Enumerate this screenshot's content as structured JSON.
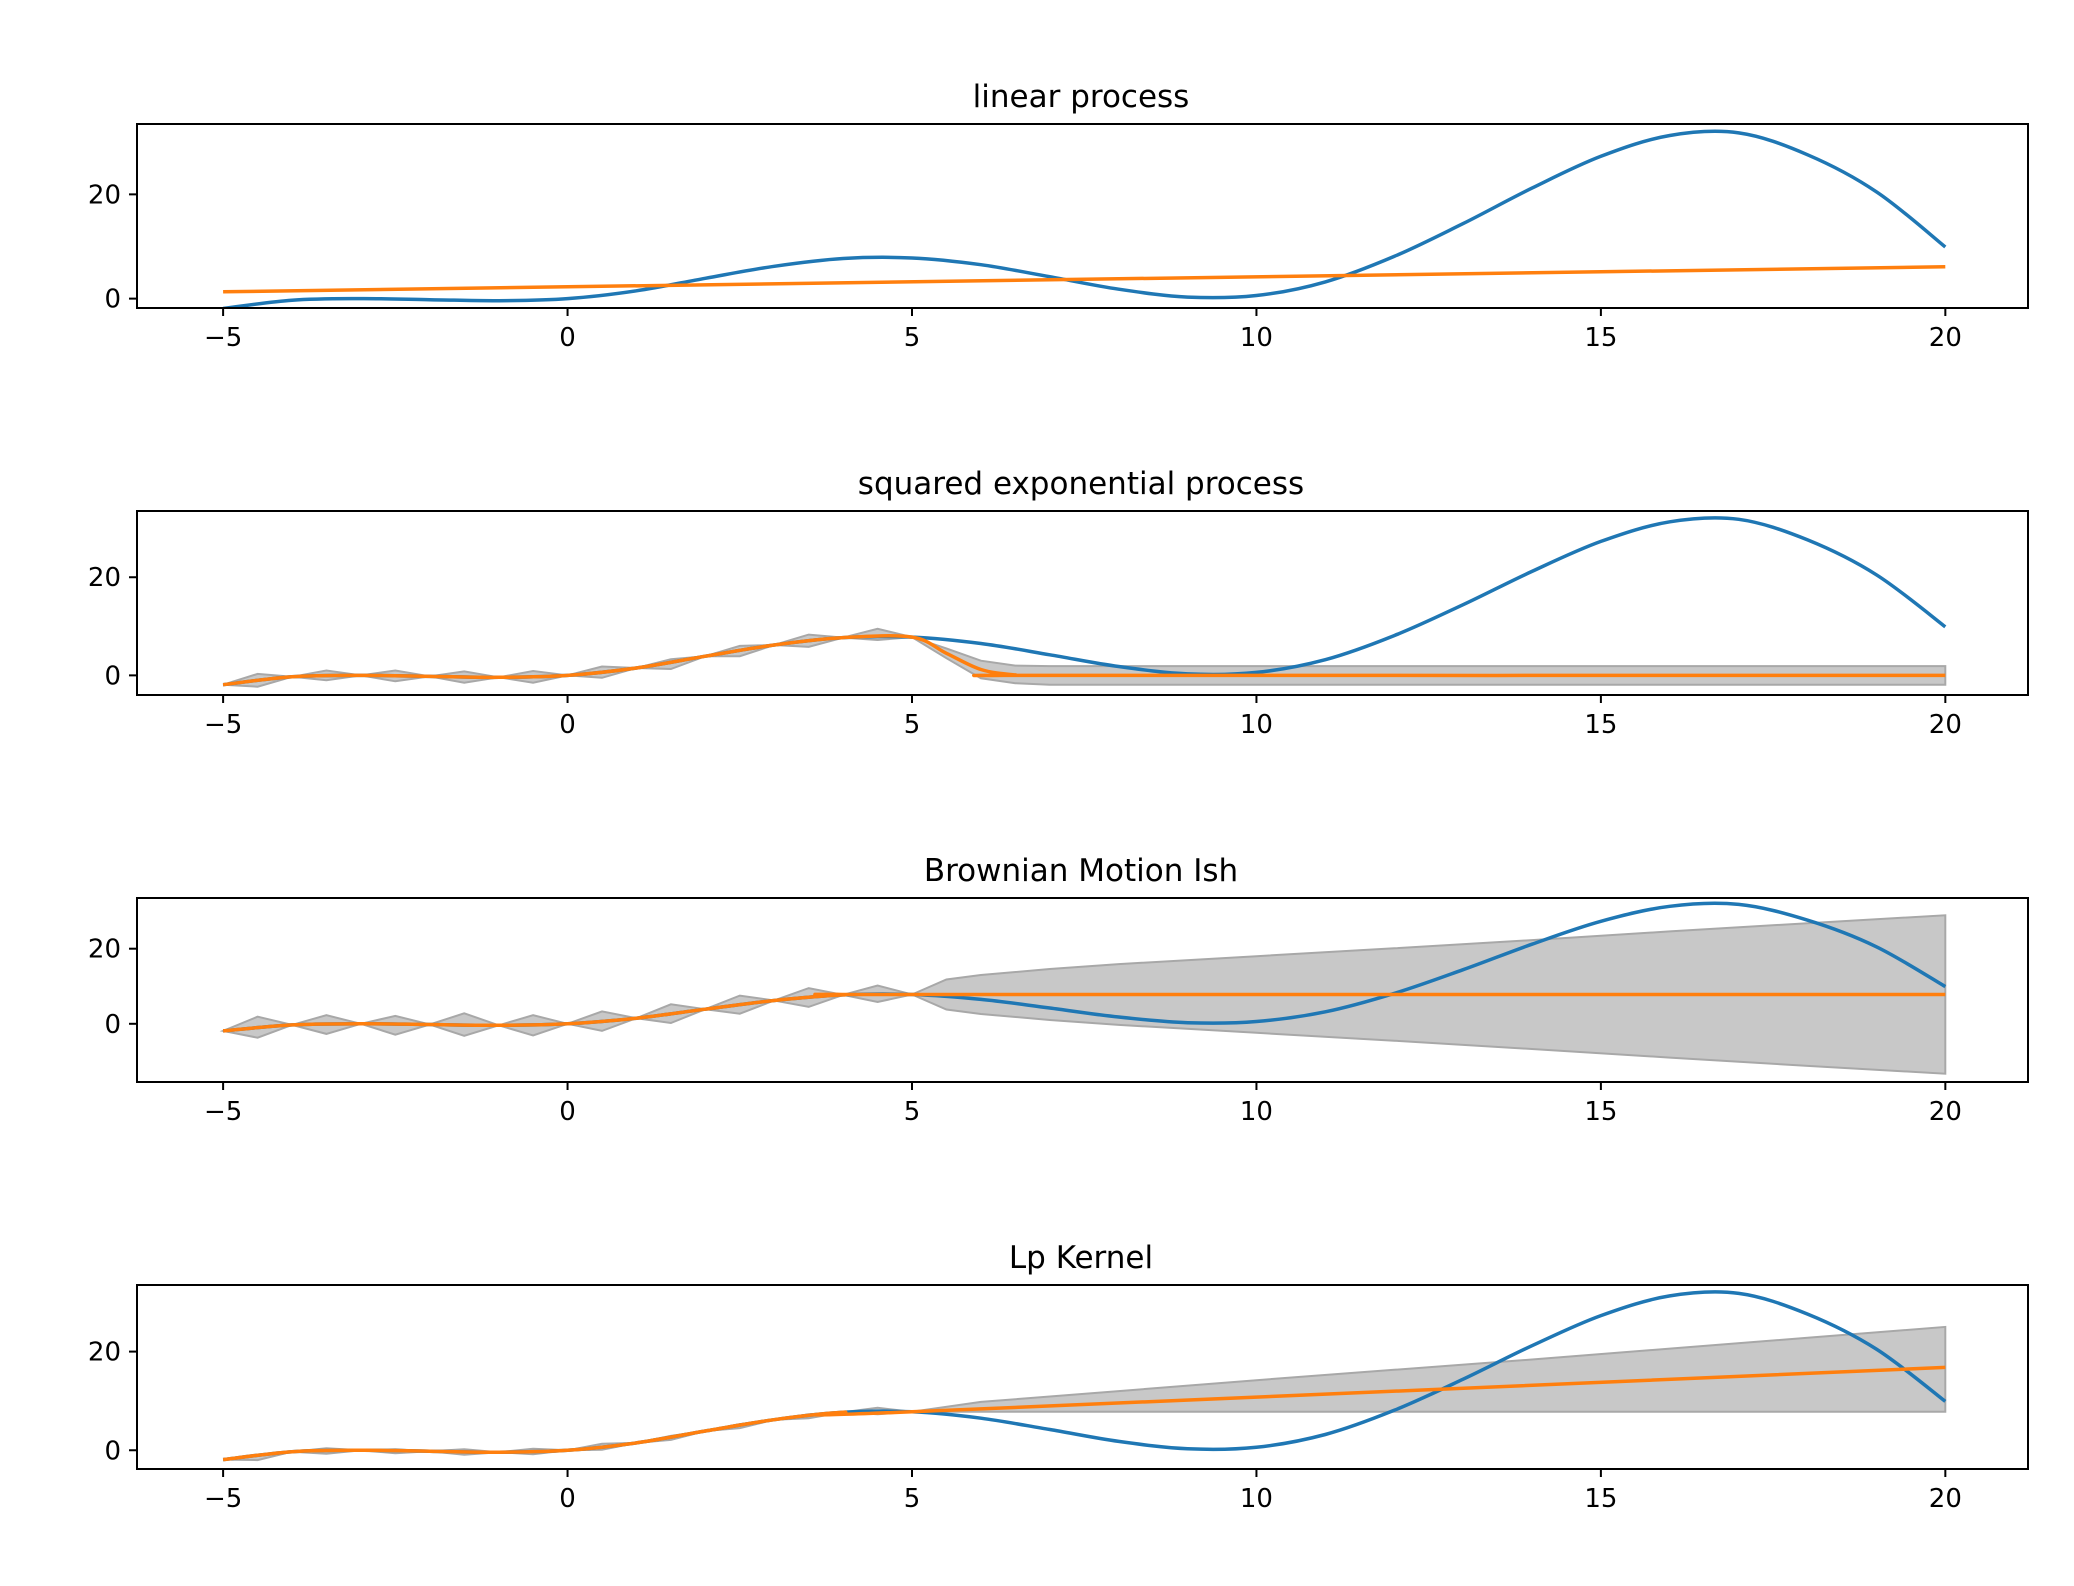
{
  "colors": {
    "truth_line": "#1f77b4",
    "mean_line": "#ff7f0e",
    "band_fill": "#c8c8c8",
    "band_edge": "#a8a8a8",
    "axes": "#000000"
  },
  "chart_data": [
    {
      "type": "line",
      "title": "linear process",
      "xlim": [
        -6.25,
        21.2
      ],
      "ylim": [
        -1.8,
        33.5
      ],
      "xticks": [
        -5,
        0,
        5,
        10,
        15,
        20
      ],
      "xtick_labels": [
        "−5",
        "0",
        "5",
        "10",
        "15",
        "20"
      ],
      "yticks": [
        0,
        20
      ],
      "ytick_labels": [
        "0",
        "20"
      ],
      "truth_x": [
        -5,
        -4,
        -3,
        -2,
        -1,
        0,
        1,
        2,
        3,
        4,
        5,
        6,
        7,
        8,
        9,
        10,
        11,
        12,
        13,
        14,
        15,
        16,
        17,
        18,
        19,
        20
      ],
      "truth_y": [
        -1.9,
        -0.3,
        0.0,
        -0.2,
        -0.4,
        0.0,
        1.5,
        3.9,
        6.2,
        7.7,
        7.8,
        6.5,
        4.2,
        1.8,
        0.3,
        0.6,
        3.2,
        8.1,
        14.4,
        21.2,
        27.3,
        31.3,
        31.8,
        27.6,
        20.5,
        9.9
      ],
      "mean_x": [
        -5,
        20
      ],
      "mean_y": [
        1.3,
        6.1
      ],
      "band_x": [],
      "band_lower": [],
      "band_upper": []
    },
    {
      "type": "line",
      "title": "squared exponential process",
      "xlim": [
        -6.25,
        21.2
      ],
      "ylim": [
        -4.0,
        33.5
      ],
      "xticks": [
        -5,
        0,
        5,
        10,
        15,
        20
      ],
      "xtick_labels": [
        "−5",
        "0",
        "5",
        "10",
        "15",
        "20"
      ],
      "yticks": [
        0,
        20
      ],
      "ytick_labels": [
        "0",
        "20"
      ],
      "truth_x": [
        -5,
        -4,
        -3,
        -2,
        -1,
        0,
        1,
        2,
        3,
        4,
        5,
        6,
        7,
        8,
        9,
        10,
        11,
        12,
        13,
        14,
        15,
        16,
        17,
        18,
        19,
        20
      ],
      "truth_y": [
        -1.9,
        -0.3,
        0.0,
        -0.2,
        -0.4,
        0.0,
        1.5,
        3.9,
        6.2,
        7.7,
        7.8,
        6.5,
        4.2,
        1.8,
        0.3,
        0.6,
        3.2,
        8.1,
        14.4,
        21.2,
        27.3,
        31.3,
        31.8,
        27.6,
        20.5,
        9.9
      ],
      "mean_x": [
        -5,
        -4,
        -3,
        -2,
        -1,
        0,
        1,
        2,
        3,
        4,
        5,
        5.5,
        6,
        6.5,
        7,
        20
      ],
      "mean_y": [
        -1.9,
        -0.3,
        0.0,
        -0.2,
        -0.4,
        0.0,
        1.5,
        3.9,
        6.2,
        7.7,
        7.8,
        4.5,
        1.2,
        0.1,
        0.0,
        0.0
      ],
      "band_x": [
        -5,
        -4.5,
        -4,
        -3.5,
        -3,
        -2.5,
        -2,
        -1.5,
        -1,
        -0.5,
        0,
        0.5,
        1,
        1.5,
        2,
        2.5,
        3,
        3.5,
        4,
        4.5,
        5,
        5.5,
        6,
        6.5,
        7,
        20
      ],
      "band_lower": [
        -1.9,
        -2.3,
        -0.3,
        -1.0,
        0.0,
        -1.2,
        -0.2,
        -1.5,
        -0.4,
        -1.5,
        0.0,
        -0.5,
        1.5,
        1.3,
        3.9,
        3.9,
        6.2,
        5.8,
        7.7,
        7.2,
        7.8,
        3.5,
        -0.6,
        -1.6,
        -1.9,
        -1.9
      ],
      "band_upper": [
        -1.9,
        0.3,
        -0.3,
        1.0,
        0.0,
        1.0,
        -0.2,
        0.8,
        -0.4,
        0.9,
        0.0,
        1.8,
        1.5,
        3.3,
        3.9,
        6.0,
        6.2,
        8.3,
        7.7,
        9.5,
        7.8,
        5.5,
        3.0,
        2.0,
        1.9,
        1.9
      ]
    },
    {
      "type": "line",
      "title": "Brownian Motion Ish",
      "xlim": [
        -6.25,
        21.2
      ],
      "ylim": [
        -15.5,
        33.5
      ],
      "xticks": [
        -5,
        0,
        5,
        10,
        15,
        20
      ],
      "xtick_labels": [
        "−5",
        "0",
        "5",
        "10",
        "15",
        "20"
      ],
      "yticks": [
        0,
        20
      ],
      "ytick_labels": [
        "0",
        "20"
      ],
      "truth_x": [
        -5,
        -4,
        -3,
        -2,
        -1,
        0,
        1,
        2,
        3,
        4,
        5,
        6,
        7,
        8,
        9,
        10,
        11,
        12,
        13,
        14,
        15,
        16,
        17,
        18,
        19,
        20
      ],
      "truth_y": [
        -1.9,
        -0.3,
        0.0,
        -0.2,
        -0.4,
        0.0,
        1.5,
        3.9,
        6.2,
        7.7,
        7.8,
        6.5,
        4.2,
        1.8,
        0.3,
        0.6,
        3.2,
        8.1,
        14.4,
        21.2,
        27.3,
        31.3,
        31.8,
        27.6,
        20.5,
        9.9
      ],
      "mean_x": [
        -5,
        -4,
        -3,
        -2,
        -1,
        0,
        1,
        2,
        3,
        4,
        5,
        20
      ],
      "mean_y": [
        -1.9,
        -0.3,
        0.0,
        -0.2,
        -0.4,
        0.0,
        1.5,
        3.9,
        6.2,
        7.7,
        7.8,
        7.8
      ],
      "band_x": [
        -5,
        -4.5,
        -4,
        -3.5,
        -3,
        -2.5,
        -2,
        -1.5,
        -1,
        -0.5,
        0,
        0.5,
        1,
        1.5,
        2,
        2.5,
        3,
        3.5,
        4,
        4.5,
        5,
        5.5,
        6,
        7,
        8,
        10,
        12,
        14,
        16,
        18,
        20
      ],
      "band_lower": [
        -1.9,
        -3.7,
        -0.3,
        -2.7,
        0.0,
        -2.9,
        -0.2,
        -3.2,
        -0.4,
        -3.1,
        0.0,
        -1.9,
        1.5,
        0.2,
        3.9,
        2.7,
        6.2,
        4.5,
        7.7,
        5.8,
        7.8,
        3.8,
        2.6,
        1.0,
        -0.3,
        -2.4,
        -4.5,
        -6.7,
        -9.0,
        -11.2,
        -13.3
      ],
      "band_upper": [
        -1.9,
        1.9,
        -0.3,
        2.3,
        0.0,
        2.1,
        -0.2,
        2.8,
        -0.4,
        2.3,
        0.0,
        3.3,
        1.5,
        5.2,
        3.9,
        7.5,
        6.2,
        9.5,
        7.7,
        10.2,
        7.8,
        11.8,
        13.0,
        14.6,
        15.9,
        18.0,
        20.1,
        22.3,
        24.6,
        26.8,
        28.9
      ]
    },
    {
      "type": "line",
      "title": "Lp Kernel",
      "xlim": [
        -6.25,
        21.2
      ],
      "ylim": [
        -3.8,
        33.5
      ],
      "xticks": [
        -5,
        0,
        5,
        10,
        15,
        20
      ],
      "xtick_labels": [
        "−5",
        "0",
        "5",
        "10",
        "15",
        "20"
      ],
      "yticks": [
        0,
        20
      ],
      "ytick_labels": [
        "0",
        "20"
      ],
      "truth_x": [
        -5,
        -4,
        -3,
        -2,
        -1,
        0,
        1,
        2,
        3,
        4,
        5,
        6,
        7,
        8,
        9,
        10,
        11,
        12,
        13,
        14,
        15,
        16,
        17,
        18,
        19,
        20
      ],
      "truth_y": [
        -1.9,
        -0.3,
        0.0,
        -0.2,
        -0.4,
        0.0,
        1.5,
        3.9,
        6.2,
        7.7,
        7.8,
        6.5,
        4.2,
        1.8,
        0.3,
        0.6,
        3.2,
        8.1,
        14.4,
        21.2,
        27.3,
        31.3,
        31.8,
        27.6,
        20.5,
        9.9
      ],
      "mean_x": [
        -5,
        -4,
        -3,
        -2,
        -1,
        0,
        1,
        2,
        3,
        4,
        5,
        20
      ],
      "mean_y": [
        -1.9,
        -0.3,
        0.0,
        -0.2,
        -0.4,
        0.0,
        1.5,
        3.9,
        6.2,
        7.7,
        7.8,
        16.8
      ],
      "band_x": [
        -5,
        -4.5,
        -4,
        -3.5,
        -3,
        -2.5,
        -2,
        -1.5,
        -1,
        -0.5,
        0,
        0.5,
        1,
        1.5,
        2,
        2.5,
        3,
        3.5,
        4,
        4.5,
        5,
        6,
        8,
        10,
        12,
        14,
        16,
        18,
        20
      ],
      "band_lower": [
        -1.9,
        -2.0,
        -0.3,
        -0.7,
        0.0,
        -0.6,
        -0.2,
        -0.9,
        -0.4,
        -0.8,
        0.0,
        0.1,
        1.5,
        2.1,
        3.9,
        4.5,
        6.2,
        6.5,
        7.7,
        7.3,
        7.8,
        7.8,
        7.8,
        7.8,
        7.8,
        7.8,
        7.8,
        7.8,
        7.8
      ],
      "band_upper": [
        -1.9,
        -0.9,
        -0.3,
        0.4,
        0.0,
        0.2,
        -0.2,
        0.2,
        -0.4,
        0.3,
        0.0,
        1.3,
        1.5,
        2.9,
        3.9,
        5.3,
        6.2,
        7.3,
        7.7,
        8.6,
        7.8,
        9.8,
        12.0,
        14.2,
        16.3,
        18.4,
        20.6,
        22.8,
        25.0
      ]
    }
  ]
}
